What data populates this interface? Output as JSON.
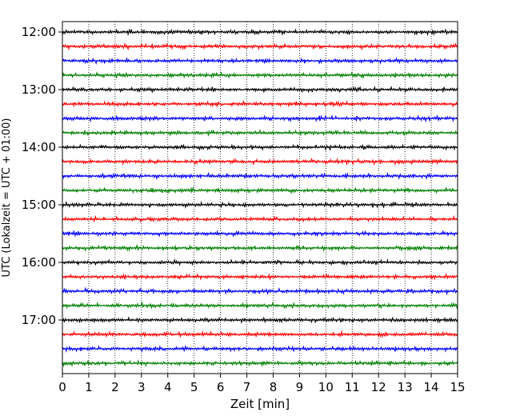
{
  "chart_data": {
    "type": "line",
    "title": "",
    "xlabel": "Zeit  [min]",
    "ylabel": "UTC (Lokalzeit = UTC + 01:00)",
    "xlim": [
      0,
      15
    ],
    "x_ticks": [
      0,
      1,
      2,
      3,
      4,
      5,
      6,
      7,
      8,
      9,
      10,
      11,
      12,
      13,
      14,
      15
    ],
    "x_tick_labels": [
      "0",
      "1",
      "2",
      "3",
      "4",
      "5",
      "6",
      "7",
      "8",
      "9",
      "10",
      "11",
      "12",
      "13",
      "14",
      "15"
    ],
    "y_ticks": [
      "12:00",
      "13:00",
      "14:00",
      "15:00",
      "16:00",
      "17:00"
    ],
    "vertical_gridlines": "dotted, every 1 min",
    "trace_color_cycle": [
      "#000000",
      "#ff0000",
      "#0000ff",
      "#008000"
    ],
    "minutes_per_trace": 15,
    "trace_start_times": [
      "12:00",
      "12:15",
      "12:30",
      "12:45",
      "13:00",
      "13:15",
      "13:30",
      "13:45",
      "14:00",
      "14:15",
      "14:30",
      "14:45",
      "15:00",
      "15:15",
      "15:30",
      "15:45",
      "16:00",
      "16:15",
      "16:30",
      "16:45",
      "17:00",
      "17:15",
      "17:30",
      "17:45"
    ],
    "legend": "none"
  }
}
